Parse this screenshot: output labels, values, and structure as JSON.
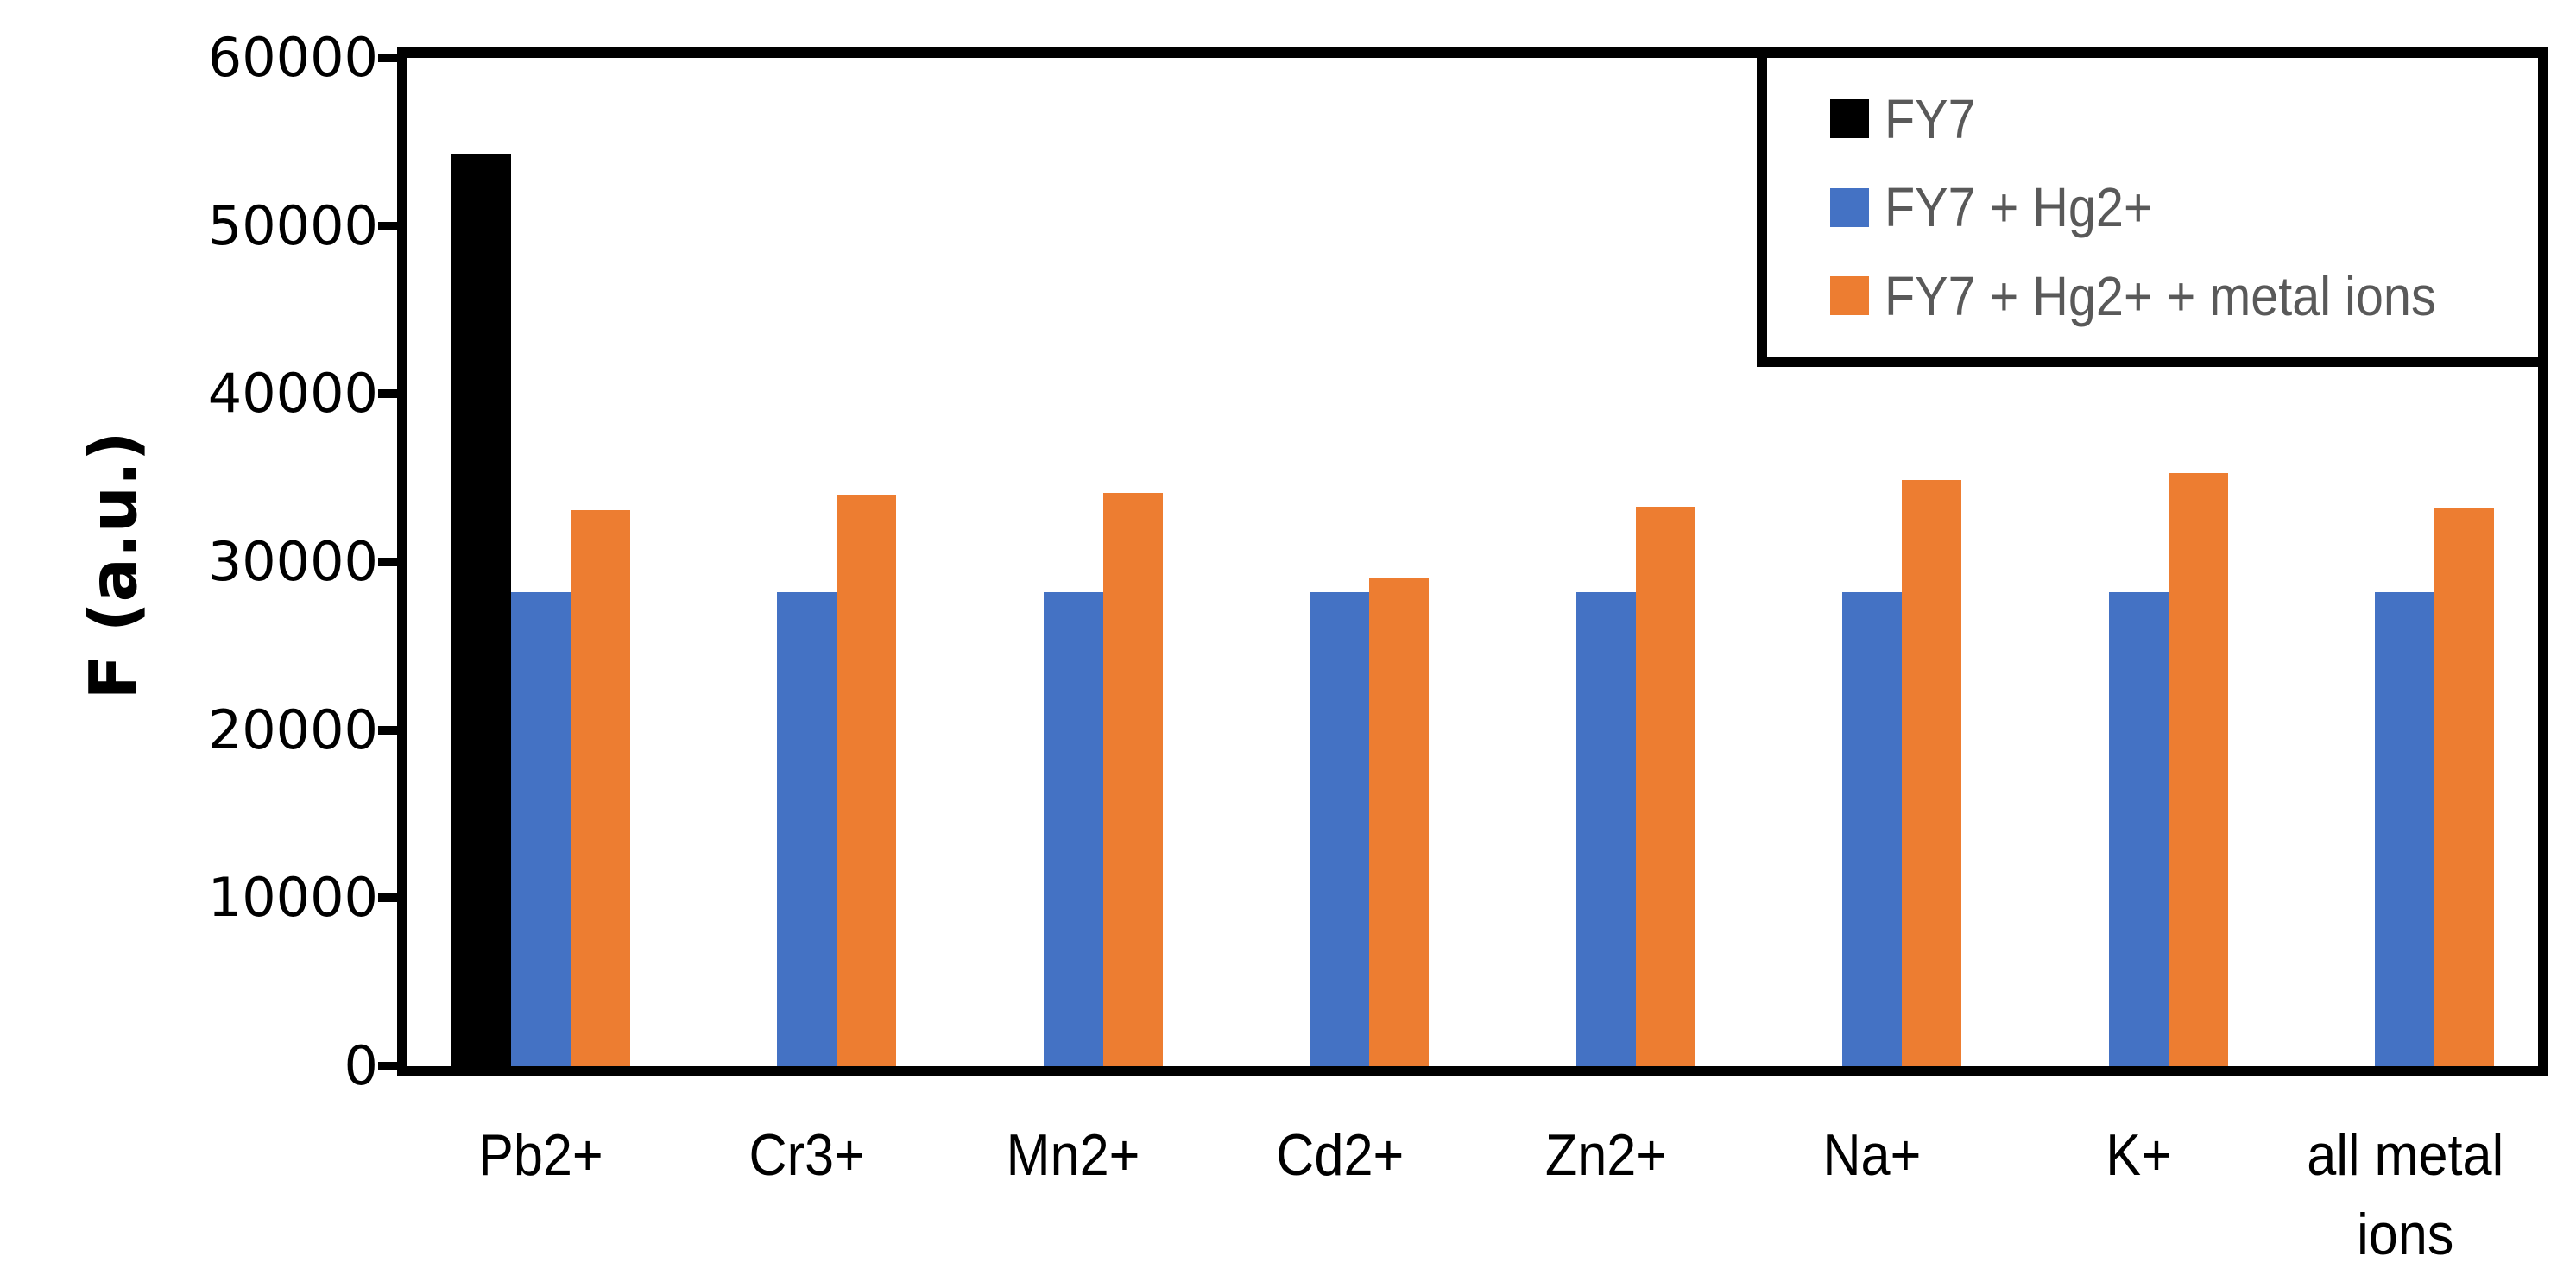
{
  "chart_data": {
    "type": "bar",
    "title": "",
    "xlabel": "",
    "ylabel": "F (a.u.)",
    "ylim": [
      0,
      60000
    ],
    "yticks": [
      0,
      10000,
      20000,
      30000,
      40000,
      50000,
      60000
    ],
    "ytick_labels": [
      "0",
      "10000",
      "20000",
      "30000",
      "40000",
      "50000",
      "60000"
    ],
    "grid": false,
    "legend_position": "top-right",
    "categories": [
      "Pb2+",
      "Cr3+",
      "Mn2+",
      "Cd2+",
      "Zn2+",
      "Na+",
      "K+",
      "all metal ions"
    ],
    "series": [
      {
        "name": "FY7",
        "color": "#000000",
        "values": [
          54300,
          0,
          0,
          0,
          0,
          0,
          0,
          0
        ]
      },
      {
        "name": "FY7 + Hg2+",
        "color": "#4472C4",
        "values": [
          28200,
          28200,
          28200,
          28200,
          28200,
          28200,
          28200,
          28200
        ]
      },
      {
        "name": "FY7 + Hg2+ + metal ions",
        "color": "#ED7D31",
        "values": [
          33100,
          34000,
          34100,
          29100,
          33300,
          34900,
          35300,
          33200
        ]
      }
    ]
  },
  "colors": {
    "axis": "#000000",
    "legend_text": "#595959",
    "background": "#ffffff"
  }
}
